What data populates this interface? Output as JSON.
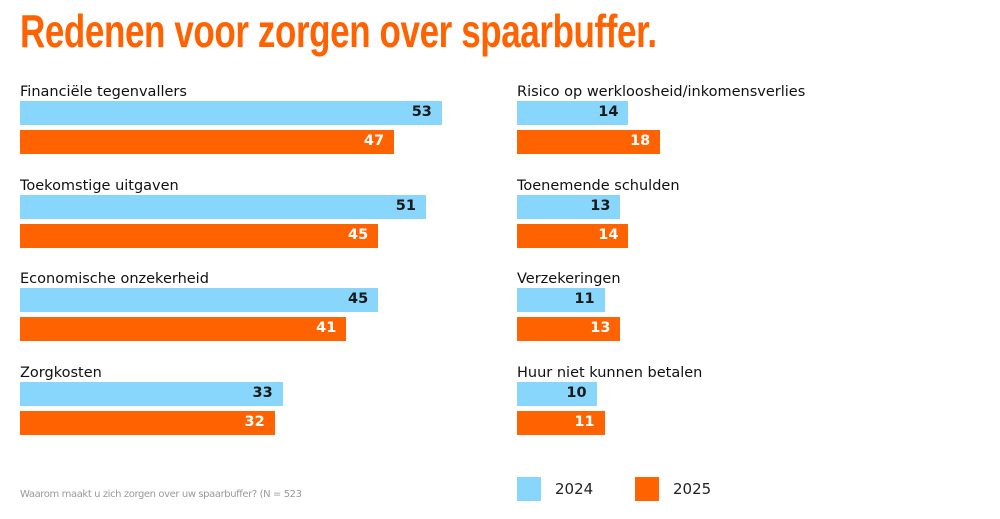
{
  "chart_data": {
    "type": "bar",
    "orientation": "horizontal",
    "title": "Redenen voor zorgen over spaarbuffer.",
    "note": "Waarom maakt u zich zorgen over uw spaarbuffer? (N = 523",
    "categories": [
      "Financiële tegenvallers",
      "Toekomstige uitgaven",
      "Economische onzekerheid",
      "Zorgkosten",
      "Risico op werkloosheid/inkomensverlies",
      "Toenemende schulden",
      "Verzekeringen",
      "Huur niet kunnen betalen"
    ],
    "series": [
      {
        "name": "2024",
        "color": "#89D6FD",
        "values": [
          53,
          51,
          45,
          33,
          14,
          13,
          11,
          10
        ]
      },
      {
        "name": "2025",
        "color": "#FF6200",
        "values": [
          47,
          45,
          41,
          32,
          18,
          14,
          13,
          11
        ]
      }
    ],
    "legend_position": "bottom-right",
    "grid": false
  }
}
